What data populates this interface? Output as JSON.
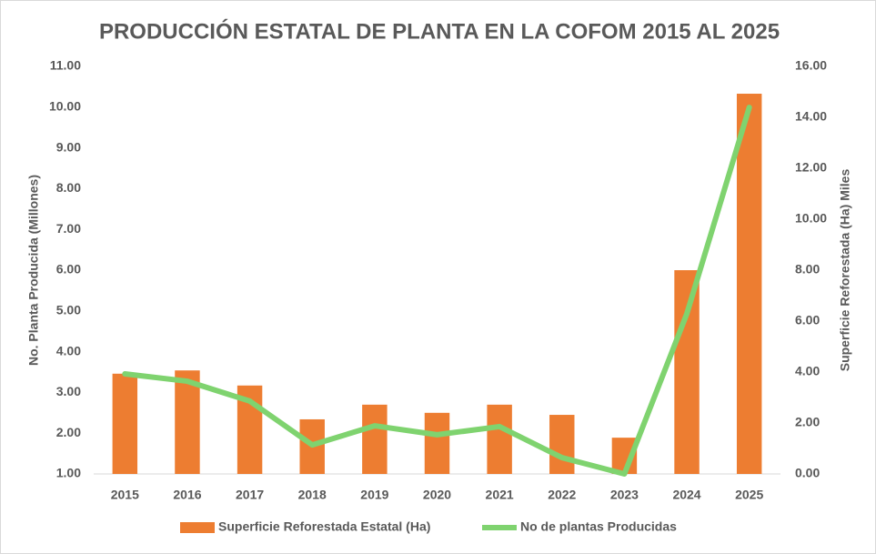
{
  "chart_data": {
    "type": "bar_line",
    "title": "PRODUCCIÓN ESTATAL DE PLANTA EN LA COFOM 2015 AL 2025",
    "y_label": "No. Planta Producida (Millones)",
    "y2_label": "Superficie Reforestada (Ha) Miles",
    "categories": [
      "2015",
      "2016",
      "2017",
      "2018",
      "2019",
      "2020",
      "2021",
      "2022",
      "2023",
      "2024",
      "2025"
    ],
    "series": [
      {
        "name": "Superficie Reforestada Estatal (Ha)",
        "type": "bar",
        "color": "#ed7d31",
        "axis": "y",
        "values": [
          3.46,
          3.54,
          3.17,
          2.34,
          2.7,
          2.5,
          2.7,
          2.45,
          1.89,
          6.0,
          10.33
        ]
      },
      {
        "name": "No de plantas Producidas",
        "type": "line",
        "color": "#7fd36f",
        "axis": "y2",
        "values": [
          3.93,
          3.64,
          2.86,
          1.14,
          1.89,
          1.54,
          1.86,
          0.64,
          0,
          6.29,
          14.39
        ]
      }
    ],
    "ylim": [
      1,
      11
    ],
    "yticks": [
      {
        "value": 1,
        "label": "1.00"
      },
      {
        "value": 2,
        "label": "2.00"
      },
      {
        "value": 3,
        "label": "3.00"
      },
      {
        "value": 4,
        "label": "4.00"
      },
      {
        "value": 5,
        "label": "5.00"
      },
      {
        "value": 6,
        "label": "6.00"
      },
      {
        "value": 7,
        "label": "7.00"
      },
      {
        "value": 8,
        "label": "8.00"
      },
      {
        "value": 9,
        "label": "9.00"
      },
      {
        "value": 10,
        "label": "10.00"
      },
      {
        "value": 11,
        "label": "11.00"
      }
    ],
    "y2lim": [
      0,
      16
    ],
    "y2ticks": [
      {
        "value": 0,
        "label": "0.00"
      },
      {
        "value": 2,
        "label": "2.00"
      },
      {
        "value": 4,
        "label": "4.00"
      },
      {
        "value": 6,
        "label": "6.00"
      },
      {
        "value": 8,
        "label": "8.00"
      },
      {
        "value": 10,
        "label": "10.00"
      },
      {
        "value": 12,
        "label": "12.00"
      },
      {
        "value": 14,
        "label": "14.00"
      },
      {
        "value": 16,
        "label": "16.00"
      }
    ],
    "legend": "bottom"
  }
}
